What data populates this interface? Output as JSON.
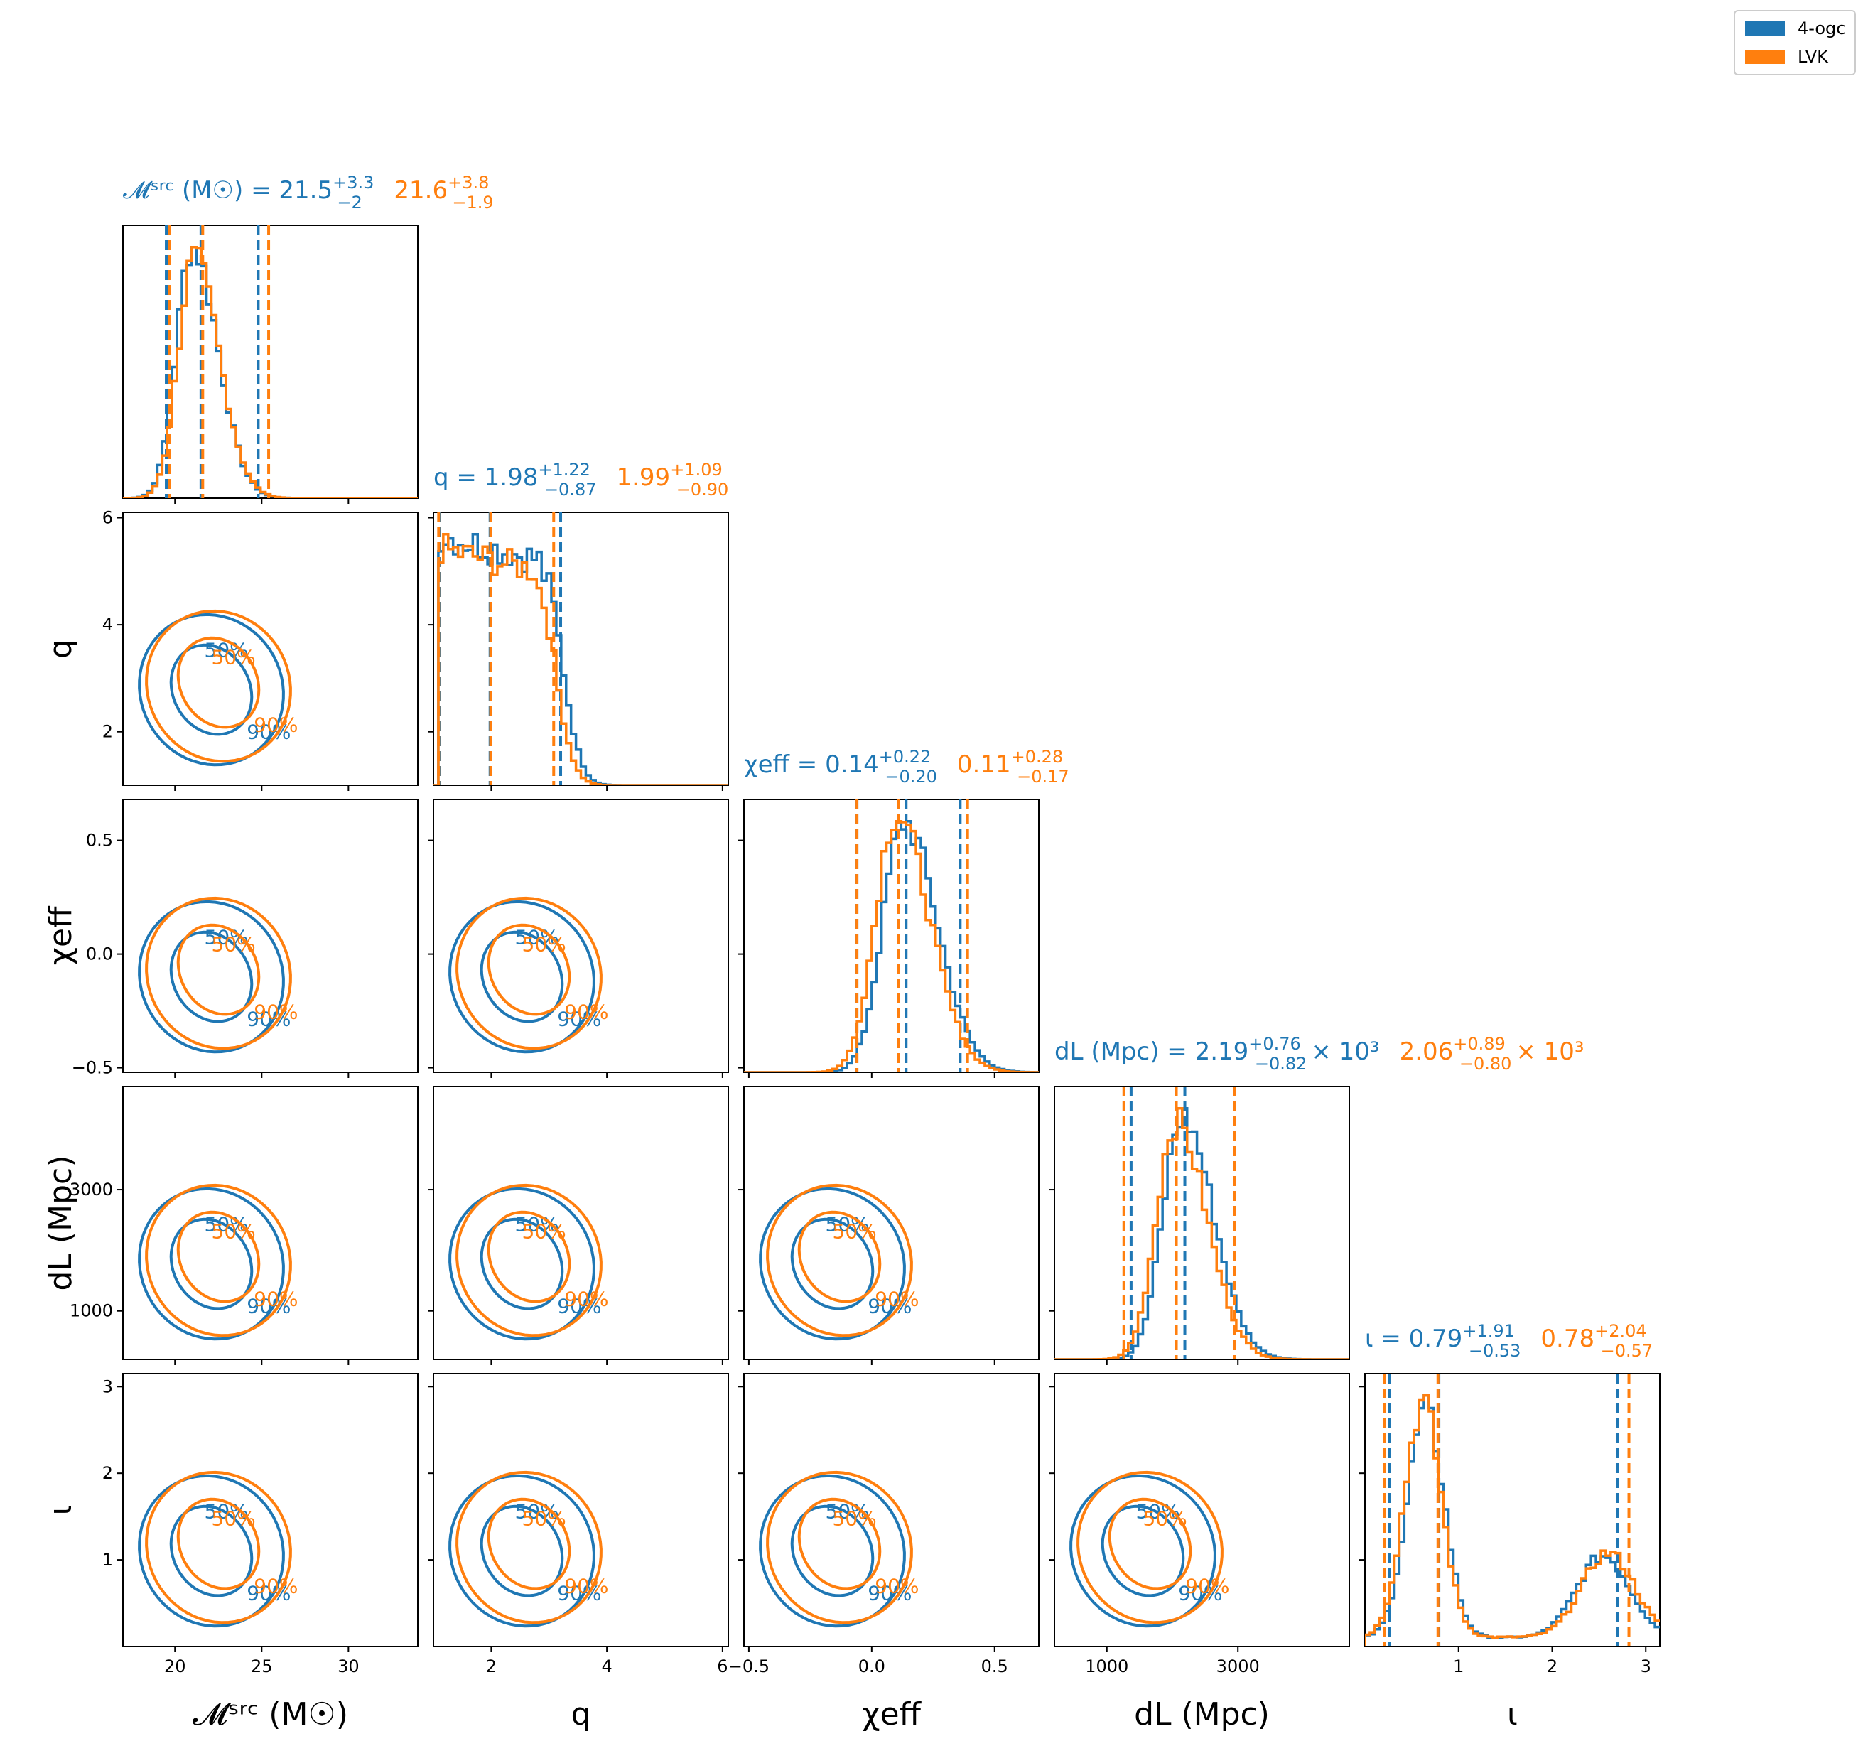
{
  "colors": {
    "series_a": "#1f77b4",
    "series_b": "#ff7f0e"
  },
  "legend": [
    {
      "name": "4-ogc",
      "color": "#1f77b4"
    },
    {
      "name": "LVK",
      "color": "#ff7f0e"
    }
  ],
  "titles": [
    {
      "param": "𝓜ˢʳᶜ (M☉) =",
      "a_median": "21.5",
      "a_plus": "+3.3",
      "a_minus": "−2",
      "b_median": "21.6",
      "b_plus": "+3.8",
      "b_minus": "−1.9",
      "suffix": ""
    },
    {
      "param": "q =",
      "a_median": "1.98",
      "a_plus": "+1.22",
      "a_minus": "−0.87",
      "b_median": "1.99",
      "b_plus": "+1.09",
      "b_minus": "−0.90",
      "suffix": ""
    },
    {
      "param": "χeff =",
      "a_median": "0.14",
      "a_plus": "+0.22",
      "a_minus": "−0.20",
      "b_median": "0.11",
      "b_plus": "+0.28",
      "b_minus": "−0.17",
      "suffix": ""
    },
    {
      "param": "dL (Mpc) =",
      "a_median": "2.19",
      "a_plus": "+0.76",
      "a_minus": "−0.82",
      "b_median": "2.06",
      "b_plus": "+0.89",
      "b_minus": "−0.80",
      "suffix": "× 10³"
    },
    {
      "param": "ι =",
      "a_median": "0.79",
      "a_plus": "+1.91",
      "a_minus": "−0.53",
      "b_median": "0.78",
      "b_plus": "+2.04",
      "b_minus": "−0.57",
      "suffix": ""
    }
  ],
  "chart_data": {
    "type": "corner",
    "parameters": [
      "𝓜ˢʳᶜ (M☉)",
      "q",
      "χeff",
      "dL (Mpc)",
      "ι"
    ],
    "axis_labels": [
      "𝓜ˢʳᶜ (M☉)",
      "q",
      "χeff",
      "dL (Mpc)",
      "ι"
    ],
    "ranges": [
      [
        17,
        34
      ],
      [
        1,
        6.1
      ],
      [
        -0.52,
        0.68
      ],
      [
        200,
        4700
      ],
      [
        0,
        3.15
      ]
    ],
    "ticks": [
      {
        "values": [
          20,
          25,
          30
        ],
        "labels": [
          "20",
          "25",
          "30"
        ]
      },
      {
        "values": [
          2,
          4,
          6
        ],
        "labels": [
          "2",
          "4",
          "6"
        ]
      },
      {
        "values": [
          -0.5,
          0.0,
          0.5
        ],
        "labels": [
          "−0.5",
          "0.0",
          "0.5"
        ]
      },
      {
        "values": [
          1000,
          3000
        ],
        "labels": [
          "1000",
          "3000"
        ]
      },
      {
        "values": [
          1,
          2,
          3
        ],
        "labels": [
          "1",
          "2",
          "3"
        ]
      }
    ],
    "y_tick_labels_rows": [
      {
        "values": [
          2,
          4,
          6
        ],
        "labels": [
          "2",
          "4",
          "6"
        ]
      },
      {
        "values": [
          -0.5,
          0.0,
          0.5
        ],
        "labels": [
          "−0.5",
          "0.0",
          "0.5"
        ]
      },
      {
        "values": [
          1000,
          3000
        ],
        "labels": [
          "1000",
          "3000"
        ]
      },
      {
        "values": [
          1,
          2,
          3
        ],
        "labels": [
          "1",
          "2",
          "3"
        ]
      }
    ],
    "series": [
      {
        "name": "4-ogc",
        "color": "#1f77b4",
        "medians": [
          21.5,
          1.98,
          0.14,
          2190,
          0.79
        ],
        "q05": [
          19.5,
          1.11,
          -0.06,
          1370,
          0.26
        ],
        "q95": [
          24.8,
          3.2,
          0.36,
          2950,
          2.7
        ],
        "hist_centers": [
          21.0,
          1.35,
          0.13,
          2150,
          0.65
        ],
        "bimodal_second_peak": [
          null,
          null,
          null,
          null,
          2.55
        ]
      },
      {
        "name": "LVK",
        "color": "#ff7f0e",
        "medians": [
          21.6,
          1.99,
          0.11,
          2060,
          0.78
        ],
        "q05": [
          19.7,
          1.09,
          -0.06,
          1260,
          0.21
        ],
        "q95": [
          25.4,
          3.08,
          0.39,
          2950,
          2.82
        ],
        "hist_centers": [
          21.1,
          1.35,
          0.1,
          2050,
          0.62
        ],
        "bimodal_second_peak": [
          null,
          null,
          null,
          null,
          2.6
        ]
      }
    ],
    "contour_levels": [
      "50%",
      "90%"
    ]
  }
}
